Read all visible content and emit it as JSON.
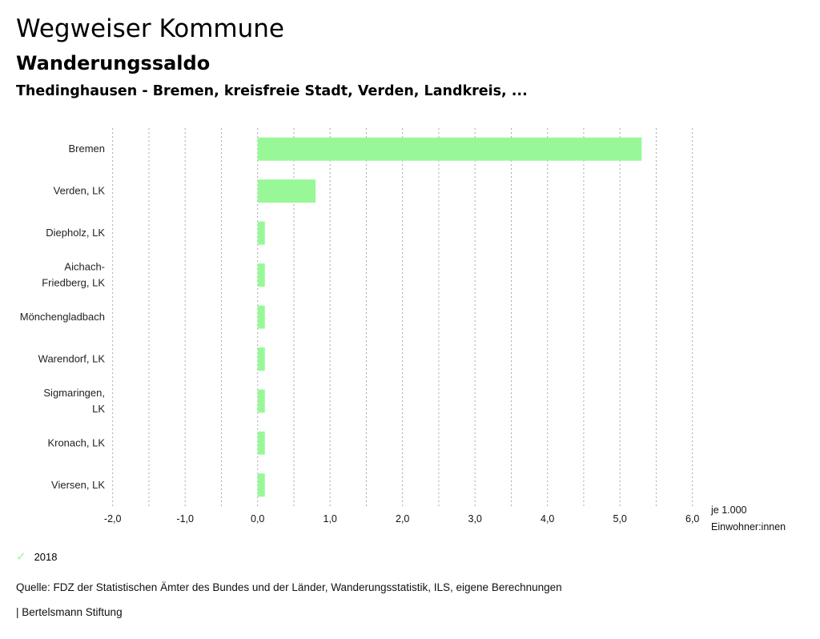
{
  "header": {
    "title": "Wegweiser Kommune",
    "subtitle": "Wanderungssaldo",
    "filter": "Thedinghausen - Bremen, kreisfreie Stadt, Verden, Landkreis, ..."
  },
  "chart_data": {
    "type": "bar",
    "orientation": "horizontal",
    "categories": [
      [
        "Bremen"
      ],
      [
        "Verden, LK"
      ],
      [
        "Diepholz, LK"
      ],
      [
        "Aichach-",
        "Friedberg, LK"
      ],
      [
        "Mönchengladbach"
      ],
      [
        "Warendorf, LK"
      ],
      [
        "Sigmaringen,",
        "LK"
      ],
      [
        "Kronach, LK"
      ],
      [
        "Viersen, LK"
      ]
    ],
    "series": [
      {
        "name": "2018",
        "color": "#98f898",
        "values": [
          5.3,
          0.8,
          0.1,
          0.1,
          0.1,
          0.1,
          0.1,
          0.1,
          0.1
        ]
      }
    ],
    "xlim": [
      -2.0,
      6.5
    ],
    "xticks": [
      -2.0,
      -1.0,
      0.0,
      1.0,
      2.0,
      3.0,
      4.0,
      5.0,
      6.0
    ],
    "xtick_labels": [
      "-2,0",
      "-1,0",
      "0,0",
      "1,0",
      "2,0",
      "3,0",
      "4,0",
      "5,0",
      "6,0"
    ],
    "grid_step": 0.5,
    "xlabel": [
      "je 1.000",
      "Einwohner:innen"
    ],
    "grid": true,
    "legend_position": "bottom-left"
  },
  "legend": {
    "items": [
      {
        "label": "2018",
        "icon": "check-icon",
        "color": "#98f898"
      }
    ]
  },
  "footer": {
    "source": "Quelle: FDZ der Statistischen Ämter des Bundes und der Länder, Wanderungsstatistik, ILS, eigene Berechnungen",
    "credit": "| Bertelsmann Stiftung"
  }
}
